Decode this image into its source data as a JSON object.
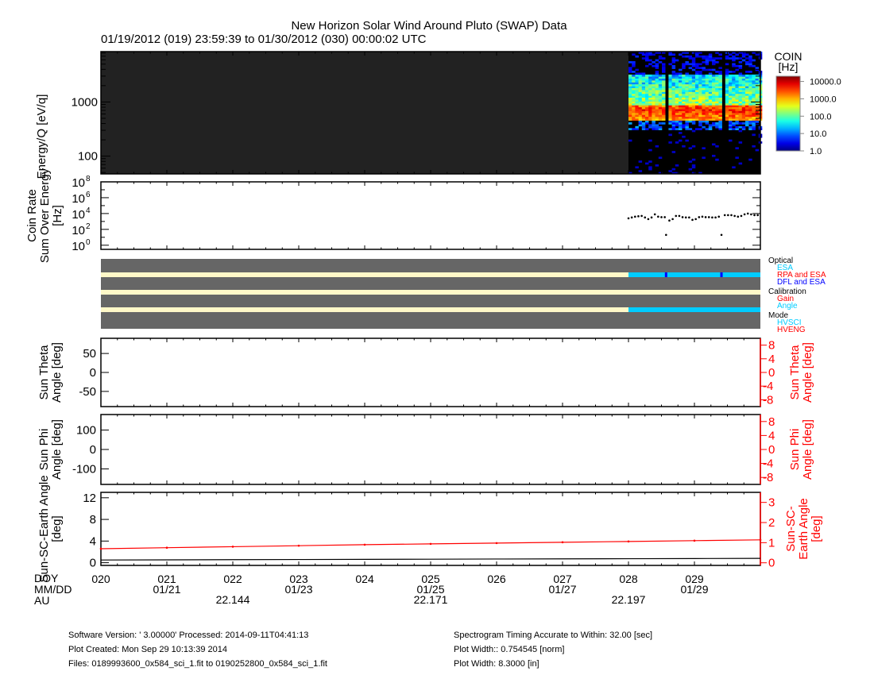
{
  "title": "New Horizon Solar Wind Around Pluto (SWAP) Data",
  "subtitle": "01/19/2012 (019) 23:59:39 to 01/30/2012 (030) 00:00:02 UTC",
  "chart_data": [
    {
      "type": "heatmap",
      "ylabel": "Energy/Q [eV/q]",
      "yscale": "log",
      "ylim": [
        47,
        8500
      ],
      "ytick_labels": [
        "1000",
        "100"
      ],
      "ytick_values": [
        1000,
        100
      ],
      "xlim_doy": [
        20,
        30
      ],
      "data_start_doy": 28.0,
      "peak_energy_evq": 700,
      "band_energy_range_evq": [
        500,
        3000
      ],
      "gaps_doy": [
        28.57,
        29.41
      ],
      "colorbar": {
        "title": "COIN",
        "unit": "[Hz]",
        "scale": "log",
        "range": [
          1,
          20000
        ],
        "tick_labels": [
          "10000.0",
          "1000.0",
          "100.0",
          "10.0",
          "1.0"
        ],
        "tick_values": [
          10000,
          1000,
          100,
          10,
          1
        ]
      },
      "colors": {
        "no_data": "#222222",
        "empty": "#000000"
      }
    },
    {
      "type": "scatter",
      "ylabel": [
        "Coin Rate",
        "Sum Over Energy",
        "[Hz]"
      ],
      "yscale": "log",
      "ylim": [
        0.3,
        100000000
      ],
      "ytick_labels": [
        "10",
        "10",
        "10",
        "10",
        "10"
      ],
      "ytick_exponents": [
        "8",
        "6",
        "4",
        "2",
        "0"
      ],
      "ytick_values": [
        100000000,
        1000000,
        10000,
        100,
        1
      ],
      "x_doy": [
        28.0,
        28.05,
        28.1,
        28.15,
        28.2,
        28.25,
        28.3,
        28.35,
        28.4,
        28.45,
        28.5,
        28.55,
        28.57,
        28.62,
        28.67,
        28.72,
        28.77,
        28.82,
        28.87,
        28.92,
        28.97,
        29.02,
        29.07,
        29.12,
        29.17,
        29.22,
        29.27,
        29.32,
        29.37,
        29.41,
        29.46,
        29.51,
        29.56,
        29.61,
        29.66,
        29.71,
        29.76,
        29.81,
        29.86,
        29.91,
        29.96
      ],
      "y_hz": [
        2500,
        3200,
        4000,
        4500,
        5000,
        3200,
        2000,
        3200,
        7900,
        4000,
        3500,
        3500,
        20,
        1300,
        2000,
        5000,
        5000,
        3500,
        3200,
        3200,
        1600,
        2000,
        3500,
        4000,
        3500,
        3500,
        3200,
        3200,
        4000,
        20,
        6300,
        6300,
        6300,
        5000,
        4000,
        5000,
        7900,
        10000,
        7900,
        6300,
        6300
      ]
    },
    {
      "type": "table",
      "name": "status-flags",
      "legend": [
        {
          "group": "Optical",
          "items": [
            {
              "label": "ESA",
              "color": "#00ccff"
            },
            {
              "label": "RPA and ESA",
              "color": "#ff0000"
            },
            {
              "label": "DFL and ESA",
              "color": "#0000ff"
            }
          ]
        },
        {
          "group": "Calibration",
          "items": [
            {
              "label": "Gain",
              "color": "#ff0000"
            },
            {
              "label": "Angle",
              "color": "#00ccff"
            }
          ]
        },
        {
          "group": "Mode",
          "items": [
            {
              "label": "HVSCI",
              "color": "#00ccff"
            },
            {
              "label": "HVENG",
              "color": "#ff0000"
            }
          ]
        }
      ],
      "rows": [
        {
          "flag": "Optical",
          "segments": [
            {
              "from": 20,
              "to": 28,
              "color": "#fff8c8"
            },
            {
              "from": 28,
              "to": 30,
              "color": "#00ccff"
            }
          ],
          "markers": [
            {
              "doy": 28.57,
              "color": "#0000ff"
            },
            {
              "doy": 29.41,
              "color": "#0000ff"
            }
          ]
        },
        {
          "flag": "Calibration",
          "segments": [
            {
              "from": 20,
              "to": 30,
              "color": "#fff8c8"
            }
          ],
          "markers": []
        },
        {
          "flag": "Mode",
          "segments": [
            {
              "from": 20,
              "to": 28,
              "color": "#fff8c8"
            },
            {
              "from": 28,
              "to": 30,
              "color": "#00ccff"
            }
          ],
          "markers": []
        }
      ],
      "background": "#666666"
    },
    {
      "type": "line",
      "ylabel": [
        "Sun Theta",
        "Angle [deg]"
      ],
      "ylabel_right": [
        "Sun Theta",
        "Angle [deg]"
      ],
      "ylim": [
        -90,
        90
      ],
      "ytick_labels": [
        "50",
        "0",
        "-50"
      ],
      "ytick_values": [
        50,
        0,
        -50
      ],
      "ylim_right": [
        -10,
        10
      ],
      "ytick_labels_right": [
        "8",
        "4",
        "0",
        "-4",
        "-8"
      ],
      "ytick_values_right": [
        8,
        4,
        0,
        -4,
        -8
      ],
      "series": []
    },
    {
      "type": "line",
      "ylabel": [
        "Sun Phi",
        "Angle [deg]"
      ],
      "ylabel_right": [
        "Sun Phi",
        "Angle [deg]"
      ],
      "ylim": [
        -180,
        180
      ],
      "ytick_labels": [
        "100",
        "0",
        "-100"
      ],
      "ytick_values": [
        100,
        0,
        -100
      ],
      "ylim_right": [
        -10,
        10
      ],
      "ytick_labels_right": [
        "8",
        "4",
        "0",
        "-4",
        "-8"
      ],
      "ytick_values_right": [
        8,
        4,
        0,
        -4,
        -8
      ],
      "series": []
    },
    {
      "type": "line",
      "ylabel": [
        "Sun-SC-Earth Angle",
        "[deg]"
      ],
      "ylabel_right": [
        "Sun-SC-",
        "Earth Angle",
        "[deg]"
      ],
      "ylim": [
        -0.5,
        13
      ],
      "ytick_labels": [
        "12",
        "8",
        "4",
        "0"
      ],
      "ytick_values": [
        12,
        8,
        4,
        0
      ],
      "ylim_right": [
        -0.13,
        3.5
      ],
      "ytick_labels_right": [
        "3",
        "2",
        "1",
        "0"
      ],
      "ytick_values_right": [
        3,
        2,
        1,
        0
      ],
      "x_doy": [
        20,
        21,
        22,
        23,
        24,
        25,
        26,
        27,
        28,
        29,
        30
      ],
      "series": [
        {
          "axis": "left",
          "color": "#000000",
          "values": [
            0.5,
            0.53,
            0.56,
            0.59,
            0.62,
            0.65,
            0.68,
            0.71,
            0.74,
            0.77,
            0.8
          ]
        },
        {
          "axis": "right",
          "color": "#ff0000",
          "values": [
            0.7,
            0.75,
            0.8,
            0.85,
            0.9,
            0.94,
            0.98,
            1.02,
            1.06,
            1.1,
            1.14
          ]
        }
      ]
    }
  ],
  "xaxis": {
    "row_labels": [
      "DOY",
      "MM/DD",
      "AU"
    ],
    "doy_ticks": [
      "020",
      "021",
      "022",
      "023",
      "024",
      "025",
      "026",
      "027",
      "028",
      "029"
    ],
    "mmdd_ticks": [
      {
        "doy": 21,
        "label": "01/21"
      },
      {
        "doy": 23,
        "label": "01/23"
      },
      {
        "doy": 25,
        "label": "01/25"
      },
      {
        "doy": 27,
        "label": "01/27"
      },
      {
        "doy": 29,
        "label": "01/29"
      }
    ],
    "au_ticks": [
      {
        "doy": 22,
        "label": "22.144"
      },
      {
        "doy": 25,
        "label": "22.171"
      },
      {
        "doy": 28,
        "label": "22.197"
      }
    ]
  },
  "footer": {
    "left": [
      "Software Version:  ' 3.00000'  Processed: 2014-09-11T04:41:13",
      "Plot Created: Mon Sep 29 10:13:39 2014",
      "Files: 0189993600_0x584_sci_1.fit to 0190252800_0x584_sci_1.fit"
    ],
    "right": [
      "Spectrogram Timing Accurate to Within: 32.00 [sec]",
      "Plot Width:: 0.754545 [norm]",
      "Plot Width: 8.3000 [in]"
    ]
  }
}
